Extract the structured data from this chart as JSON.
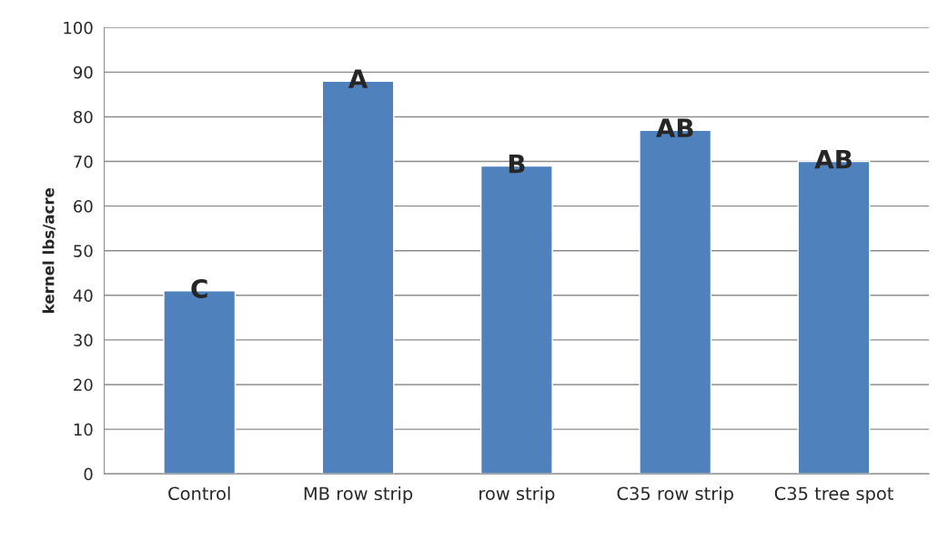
{
  "chart_data": {
    "type": "bar",
    "ylabel": "kernel lbs/acre",
    "categories": [
      "Control",
      "MB row strip",
      "row strip",
      "C35 row strip",
      "C35 tree spot"
    ],
    "values": [
      41,
      88,
      69,
      77,
      70
    ],
    "value_labels": [
      "C",
      "A",
      "B",
      "AB",
      "AB"
    ],
    "color": "#4f81bd",
    "ylim": [
      0,
      100
    ],
    "yticks": [
      0,
      10,
      20,
      30,
      40,
      50,
      60,
      70,
      80,
      90,
      100
    ],
    "grid": "y"
  }
}
